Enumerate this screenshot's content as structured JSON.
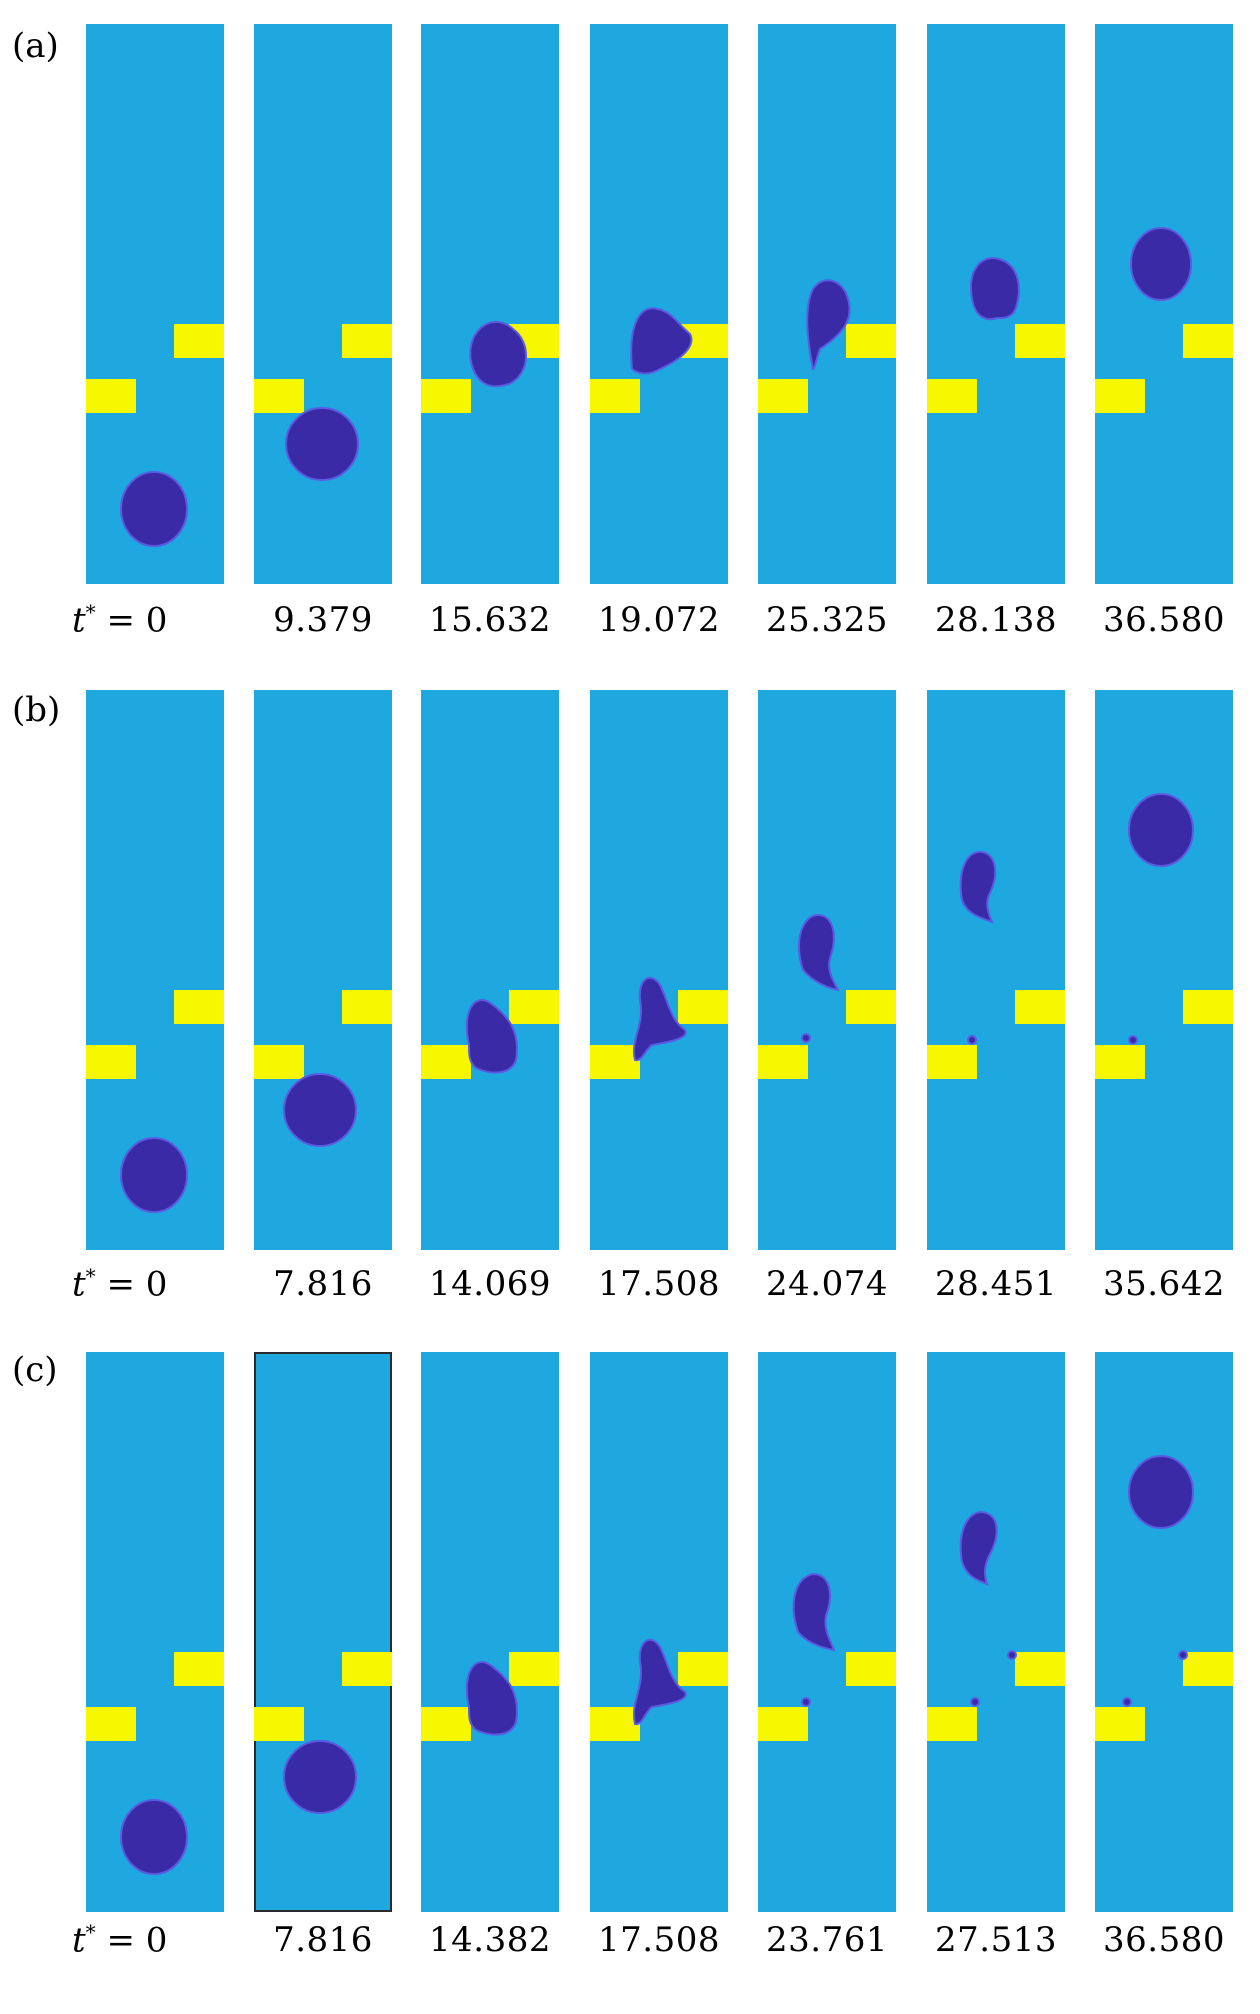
{
  "figure": {
    "colors": {
      "fluid": "#1ea8df",
      "drop": "#3a2aa5",
      "obstacle": "#f7f700"
    },
    "t_prefix": "t",
    "t_star": "*",
    "t_eq": "= 0",
    "panels": [
      {
        "label": "(a)",
        "times": [
          "9.379",
          "15.632",
          "19.072",
          "25.325",
          "28.138",
          "36.580"
        ]
      },
      {
        "label": "(b)",
        "times": [
          "7.816",
          "14.069",
          "17.508",
          "24.074",
          "28.451",
          "35.642"
        ]
      },
      {
        "label": "(c)",
        "times": [
          "7.816",
          "14.382",
          "17.508",
          "23.761",
          "27.513",
          "36.580"
        ]
      }
    ]
  }
}
